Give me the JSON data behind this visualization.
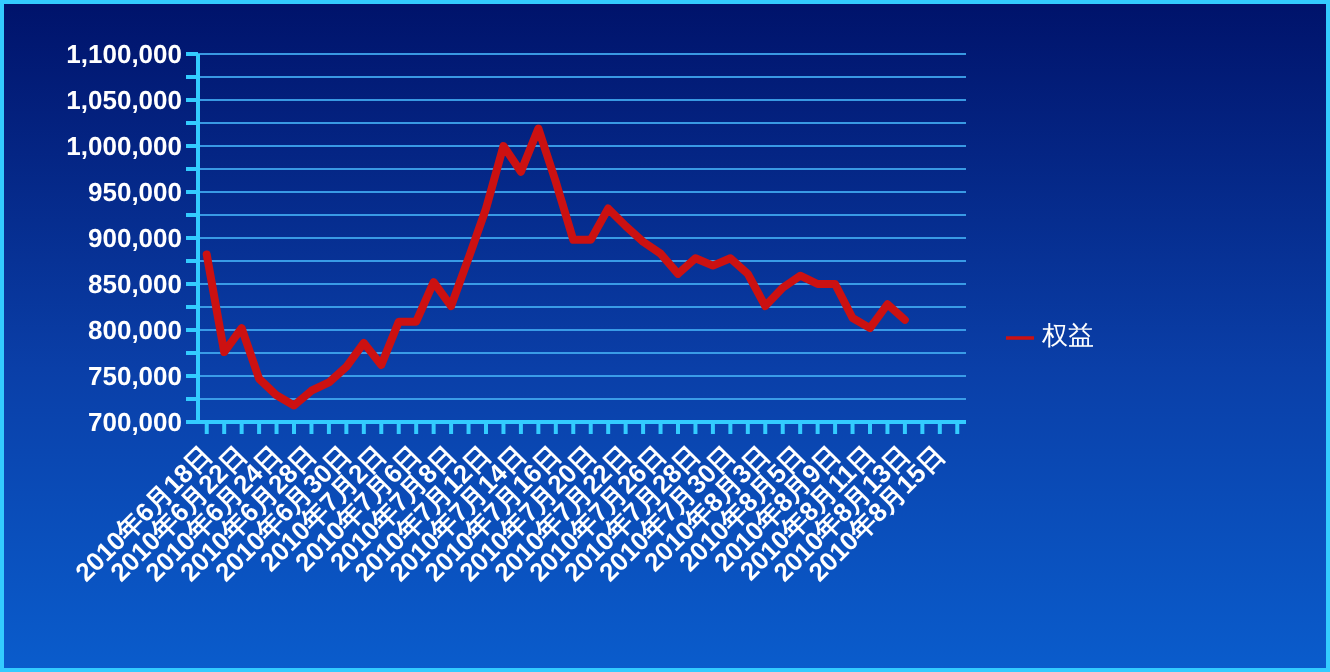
{
  "chart_data": {
    "type": "line",
    "categories": [
      "2010年6月18日",
      null,
      "2010年6月22日",
      null,
      "2010年6月24日",
      null,
      "2010年6月28日",
      null,
      "2010年6月30日",
      null,
      "2010年7月2日",
      null,
      "2010年7月6日",
      null,
      "2010年7月8日",
      null,
      "2010年7月12日",
      null,
      "2010年7月14日",
      null,
      "2010年7月16日",
      null,
      "2010年7月20日",
      null,
      "2010年7月22日",
      null,
      "2010年7月26日",
      null,
      "2010年7月28日",
      null,
      "2010年7月30日",
      null,
      "2010年8月3日",
      null,
      "2010年8月5日",
      null,
      "2010年8月9日",
      null,
      "2010年8月11日",
      null,
      "2010年8月13日",
      null,
      "2010年8月15日",
      null
    ],
    "series": [
      {
        "name": "权益",
        "color": "#cc1111",
        "values": [
          882000,
          776000,
          802000,
          747000,
          729000,
          718000,
          734000,
          743000,
          760000,
          786000,
          762000,
          809000,
          809000,
          852000,
          826000,
          878000,
          932000,
          1000000,
          972000,
          1019000,
          961000,
          898000,
          898000,
          932000,
          913000,
          896000,
          883000,
          861000,
          878000,
          870000,
          878000,
          861000,
          826000,
          846000,
          859000,
          850000,
          850000,
          813000,
          802000,
          828000,
          811000,
          null,
          null,
          null
        ]
      }
    ],
    "ylim": [
      700000,
      1100000
    ],
    "yticks": [
      {
        "value": 700000,
        "label": "700,000"
      },
      {
        "value": 725000,
        "label": null
      },
      {
        "value": 750000,
        "label": "750,000"
      },
      {
        "value": 775000,
        "label": null
      },
      {
        "value": 800000,
        "label": "800,000"
      },
      {
        "value": 825000,
        "label": null
      },
      {
        "value": 850000,
        "label": "850,000"
      },
      {
        "value": 875000,
        "label": null
      },
      {
        "value": 900000,
        "label": "900,000"
      },
      {
        "value": 925000,
        "label": null
      },
      {
        "value": 950000,
        "label": "950,000"
      },
      {
        "value": 975000,
        "label": null
      },
      {
        "value": 1000000,
        "label": "1,000,000"
      },
      {
        "value": 1025000,
        "label": null
      },
      {
        "value": 1050000,
        "label": "1,050,000"
      },
      {
        "value": 1075000,
        "label": null
      },
      {
        "value": 1100000,
        "label": "1,100,000"
      }
    ],
    "grid": "y",
    "legend": "right",
    "marker": "none",
    "line_style": "solid"
  }
}
